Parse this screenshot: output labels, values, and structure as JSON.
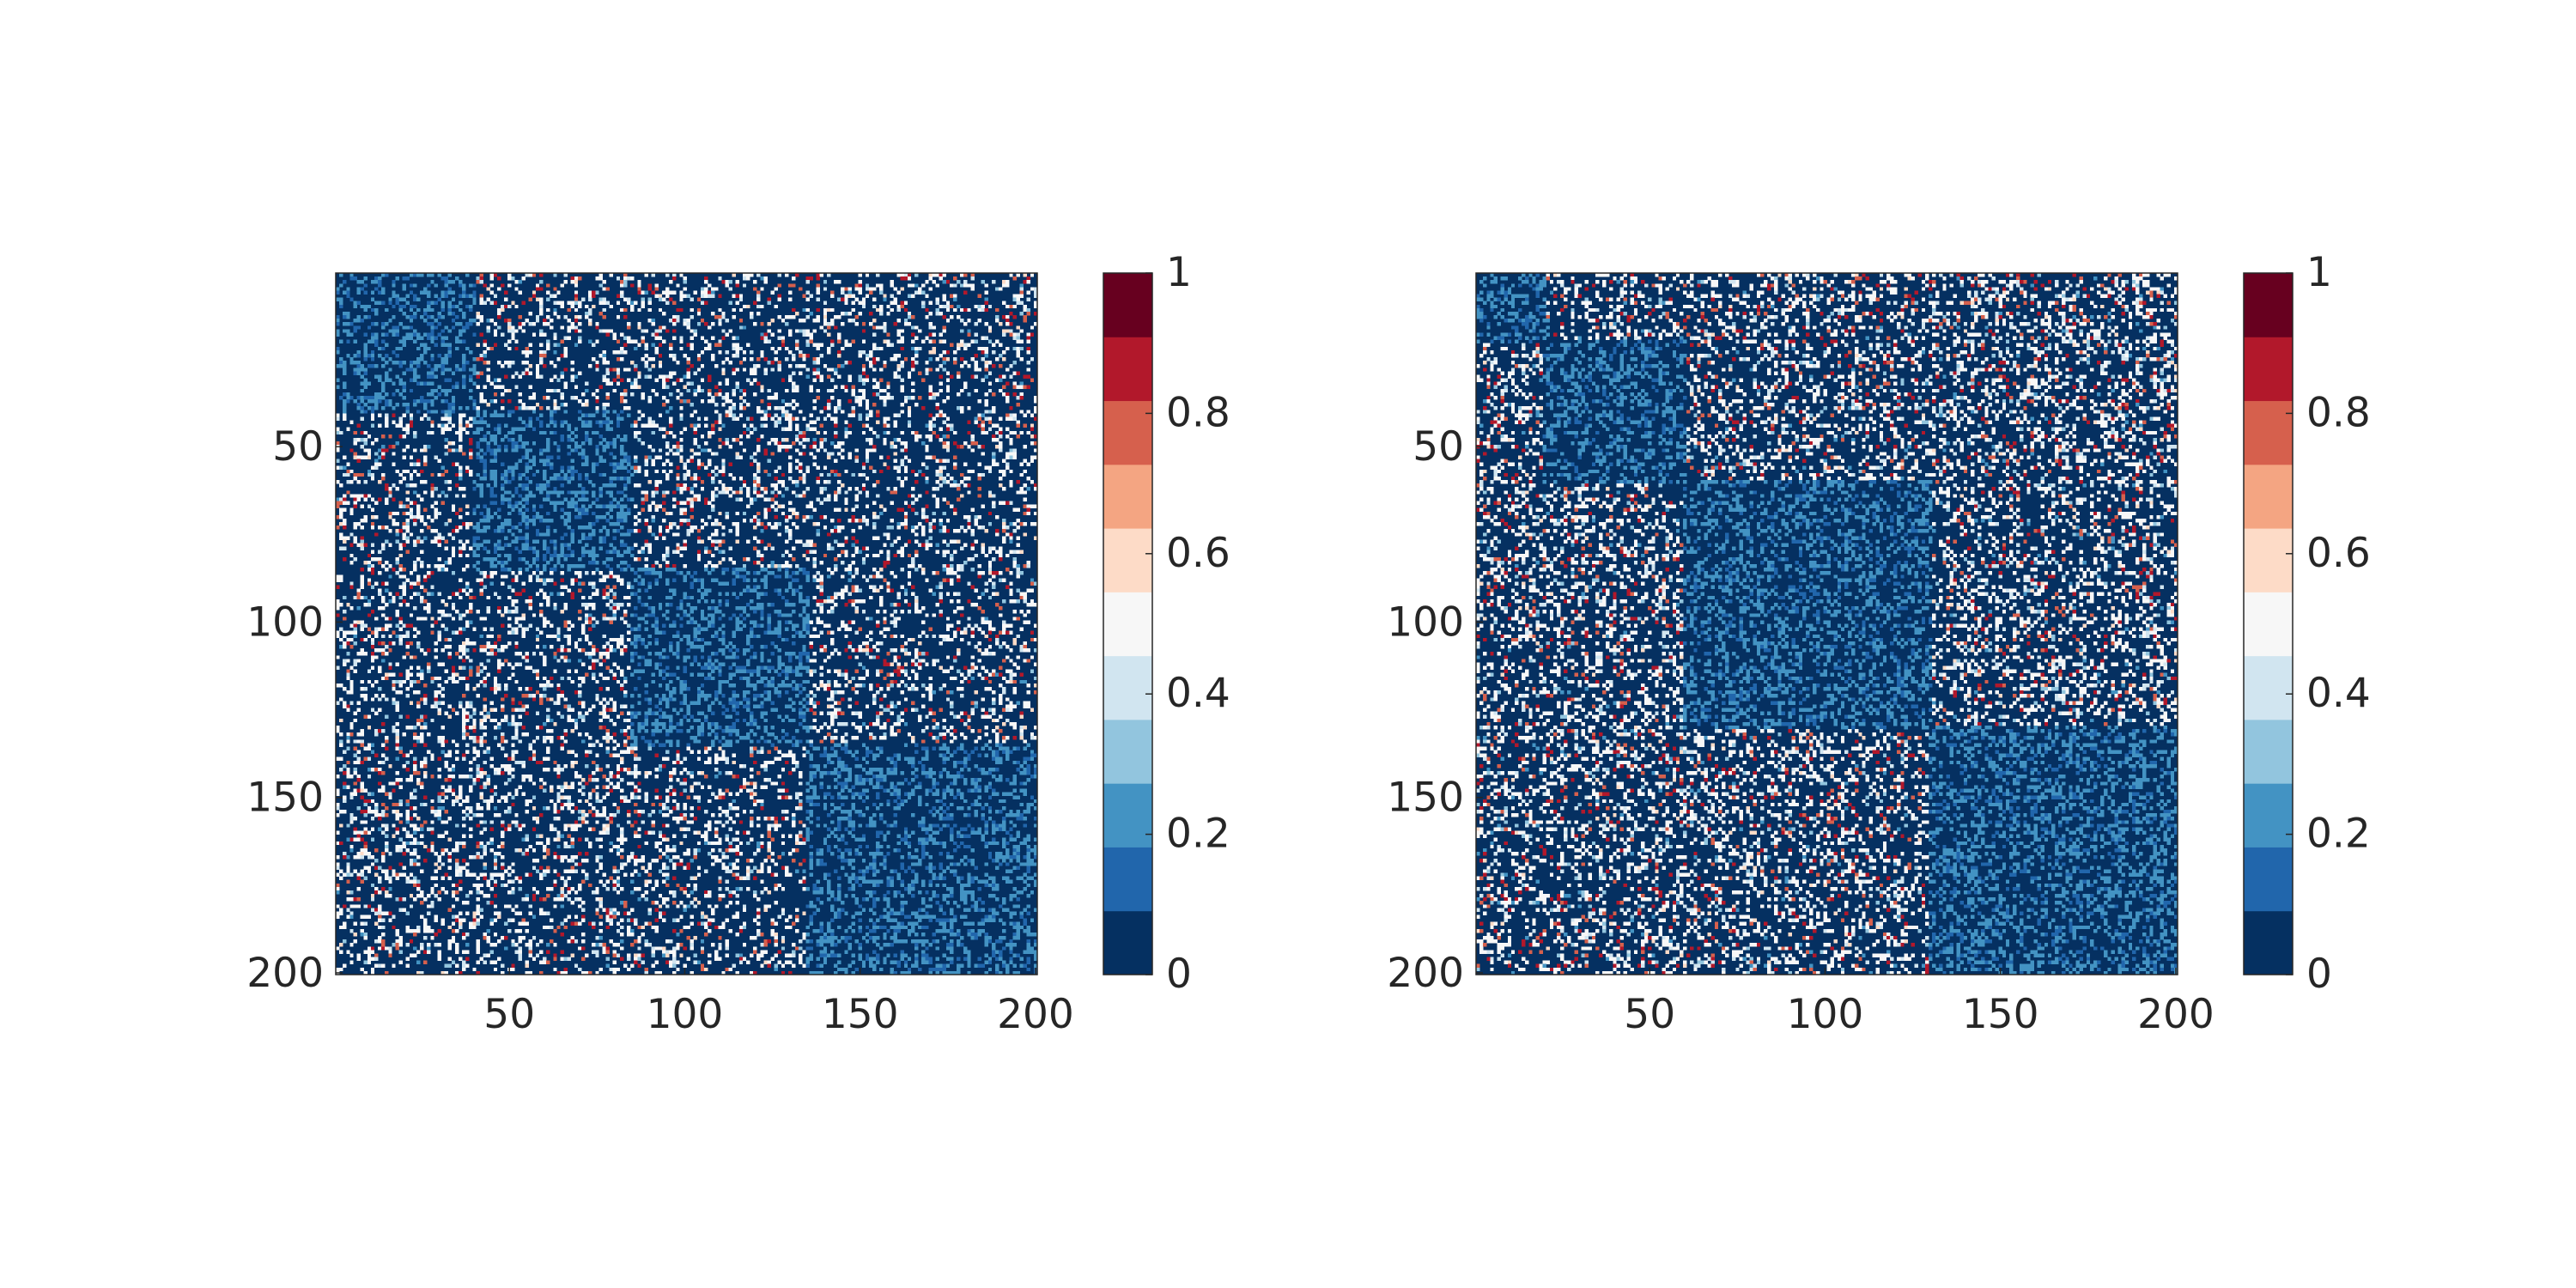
{
  "chart_data": [
    {
      "type": "heatmap",
      "matrix_size": 200,
      "x_ticks": [
        50,
        100,
        150,
        200
      ],
      "y_ticks": [
        50,
        100,
        150,
        200
      ],
      "x_tick_labels": [
        "50",
        "100",
        "150",
        "200"
      ],
      "y_tick_labels": [
        "50",
        "100",
        "150",
        "200"
      ],
      "xlim": [
        0.5,
        200.5
      ],
      "ylim": [
        0.5,
        200.5
      ],
      "y_axis_reversed": true,
      "grid": false,
      "colorbar": {
        "range": [
          0,
          1
        ],
        "levels": 11,
        "ticks": [
          0,
          0.2,
          0.4,
          0.6,
          0.8,
          1
        ],
        "tick_labels": [
          "0",
          "0.2",
          "0.4",
          "0.6",
          "0.8",
          "1"
        ],
        "colors": [
          "#053061",
          "#2166ac",
          "#4393c3",
          "#92c5de",
          "#d1e5f0",
          "#f7f7f7",
          "#fddbc7",
          "#f4a582",
          "#d6604d",
          "#b2182b",
          "#67001f"
        ]
      },
      "pattern": {
        "background_value": 0,
        "diagonal_band_value": 0.2,
        "diagonal_blocks": [
          [
            1,
            40
          ],
          [
            40,
            85
          ],
          [
            85,
            135
          ],
          [
            135,
            200
          ]
        ],
        "random_value_fraction": 0.27
      }
    },
    {
      "type": "heatmap",
      "matrix_size": 200,
      "x_ticks": [
        50,
        100,
        150,
        200
      ],
      "y_ticks": [
        50,
        100,
        150,
        200
      ],
      "x_tick_labels": [
        "50",
        "100",
        "150",
        "200"
      ],
      "y_tick_labels": [
        "50",
        "100",
        "150",
        "200"
      ],
      "xlim": [
        0.5,
        200.5
      ],
      "ylim": [
        0.5,
        200.5
      ],
      "y_axis_reversed": true,
      "grid": false,
      "colorbar": {
        "range": [
          0,
          1
        ],
        "levels": 11,
        "ticks": [
          0,
          0.2,
          0.4,
          0.6,
          0.8,
          1
        ],
        "tick_labels": [
          "0",
          "0.2",
          "0.4",
          "0.6",
          "0.8",
          "1"
        ],
        "colors": [
          "#053061",
          "#2166ac",
          "#4393c3",
          "#92c5de",
          "#d1e5f0",
          "#f7f7f7",
          "#fddbc7",
          "#f4a582",
          "#d6604d",
          "#b2182b",
          "#67001f"
        ]
      },
      "pattern": {
        "background_value": 0,
        "diagonal_band_value": 0.2,
        "diagonal_blocks": [
          [
            1,
            20
          ],
          [
            20,
            60
          ],
          [
            60,
            130
          ],
          [
            130,
            200
          ]
        ],
        "random_value_fraction": 0.3
      }
    }
  ]
}
